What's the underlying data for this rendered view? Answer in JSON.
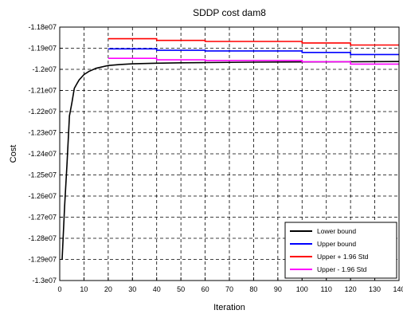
{
  "chart_data": {
    "type": "line",
    "title": "SDDP cost dam8",
    "xlabel": "Iteration",
    "ylabel": "Cost",
    "xlim": [
      0,
      140
    ],
    "ylim": [
      -13000000,
      -11800000
    ],
    "xticks": [
      0,
      10,
      20,
      30,
      40,
      50,
      60,
      70,
      80,
      90,
      100,
      110,
      120,
      130,
      140
    ],
    "xtick_labels": [
      "0",
      "10",
      "20",
      "30",
      "40",
      "50",
      "60",
      "70",
      "80",
      "90",
      "100",
      "110",
      "120",
      "130",
      "140"
    ],
    "yticks": [
      -11800000,
      -11900000,
      -12000000,
      -12100000,
      -12200000,
      -12300000,
      -12400000,
      -12500000,
      -12600000,
      -12700000,
      -12800000,
      -12900000,
      -13000000
    ],
    "ytick_labels": [
      "-1.18e07",
      "-1.19e07",
      "-1.2e07",
      "-1.21e07",
      "-1.22e07",
      "-1.23e07",
      "-1.24e07",
      "-1.25e07",
      "-1.26e07",
      "-1.27e07",
      "-1.28e07",
      "-1.29e07",
      "-1.3e07"
    ],
    "grid": true,
    "legend_position": "bottom-right",
    "series": [
      {
        "name": "Lower bound",
        "color": "#000000",
        "x": [
          1,
          2,
          3,
          4,
          5,
          6,
          7,
          8,
          10,
          12,
          15,
          20,
          25,
          30,
          40,
          50,
          60,
          80,
          100,
          120,
          140
        ],
        "y": [
          -12900000,
          -12650000,
          -12450000,
          -12220000,
          -12160000,
          -12090000,
          -12070000,
          -12050000,
          -12025000,
          -12010000,
          -11995000,
          -11982000,
          -11977000,
          -11974000,
          -11971000,
          -11969000,
          -11968000,
          -11966000,
          -11965000,
          -11964000,
          -11963000
        ]
      },
      {
        "name": "Upper bound",
        "color": "#0000ff",
        "x": [
          20,
          40,
          40,
          60,
          60,
          100,
          100,
          120,
          120,
          140
        ],
        "y": [
          -11903000,
          -11903000,
          -11910000,
          -11910000,
          -11913000,
          -11913000,
          -11920000,
          -11920000,
          -11930000,
          -11930000
        ]
      },
      {
        "name": "Upper + 1.96 Std",
        "color": "#ff0000",
        "x": [
          20,
          40,
          40,
          60,
          60,
          100,
          100,
          120,
          120,
          140
        ],
        "y": [
          -11855000,
          -11855000,
          -11863000,
          -11863000,
          -11868000,
          -11868000,
          -11875000,
          -11875000,
          -11885000,
          -11885000
        ]
      },
      {
        "name": "Upper - 1.96 Std",
        "color": "#ff00ff",
        "x": [
          20,
          40,
          40,
          60,
          60,
          100,
          100,
          120,
          120,
          140
        ],
        "y": [
          -11948000,
          -11948000,
          -11955000,
          -11955000,
          -11958000,
          -11958000,
          -11964000,
          -11964000,
          -11975000,
          -11975000
        ]
      }
    ]
  }
}
